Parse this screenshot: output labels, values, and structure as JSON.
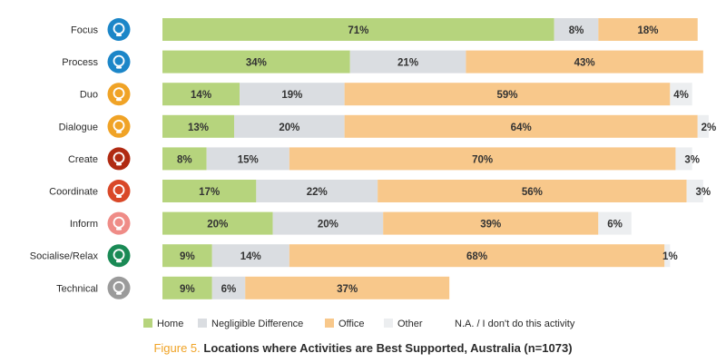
{
  "chart_data": {
    "type": "bar",
    "orientation": "horizontal",
    "stacked": true,
    "categories": [
      "Focus",
      "Process",
      "Duo",
      "Dialogue",
      "Create",
      "Coordinate",
      "Inform",
      "Socialise/Relax",
      "Technical"
    ],
    "icons": [
      "focus-icon",
      "process-icon",
      "duo-icon",
      "dialogue-icon",
      "create-icon",
      "coordinate-icon",
      "inform-icon",
      "socialise-icon",
      "technical-icon"
    ],
    "icon_colors": [
      "#1c86c8",
      "#1c86c8",
      "#f0a326",
      "#f0a326",
      "#b02a12",
      "#d94828",
      "#ef8c87",
      "#1a8a55",
      "#9b9b9b"
    ],
    "series": [
      {
        "name": "Home",
        "color": "#b6d47d",
        "values": [
          71,
          34,
          14,
          13,
          8,
          17,
          20,
          9,
          9
        ]
      },
      {
        "name": "Negligible Difference",
        "color": "#dadde1",
        "values": [
          8,
          21,
          19,
          20,
          15,
          22,
          20,
          14,
          6
        ]
      },
      {
        "name": "Office",
        "color": "#f8c88b",
        "values": [
          18,
          43,
          59,
          64,
          70,
          56,
          39,
          68,
          37
        ]
      },
      {
        "name": "Other",
        "color": "#eceef0",
        "values": [
          null,
          null,
          4,
          2,
          3,
          3,
          6,
          1,
          null
        ]
      }
    ],
    "legend_extra": "N.A. / I don't do this activity",
    "legend_position": "bottom",
    "xlim": [
      0,
      100
    ]
  },
  "caption": {
    "figure_label": "Figure 5.",
    "text": "Locations where Activities are Best Supported, Australia (n=1073)"
  }
}
